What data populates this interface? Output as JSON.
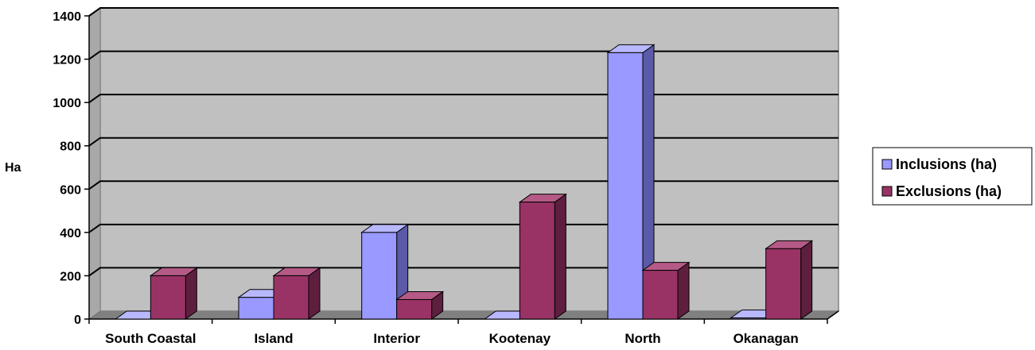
{
  "chart_data": {
    "type": "bar",
    "title": "",
    "xlabel": "",
    "ylabel": "Ha",
    "ylim": [
      0,
      1400
    ],
    "yticks": [
      0,
      200,
      400,
      600,
      800,
      1000,
      1200,
      1400
    ],
    "categories": [
      "South Coastal",
      "Island",
      "Interior",
      "Kootenay",
      "North",
      "Okanagan"
    ],
    "series": [
      {
        "name": "Inclusions (ha)",
        "values": [
          0,
          100,
          400,
          0,
          1230,
          5
        ],
        "color": "#9999ff",
        "side_color": "#5a5aa8",
        "top_color": "#b8b8ff"
      },
      {
        "name": "Exclusions (ha)",
        "values": [
          200,
          200,
          90,
          540,
          225,
          325
        ],
        "color": "#993366",
        "side_color": "#5e1f3e",
        "top_color": "#b55a86"
      }
    ],
    "grid": true,
    "legend": "right",
    "plot_background": "#c0c0c0",
    "floor_color": "#808080"
  }
}
